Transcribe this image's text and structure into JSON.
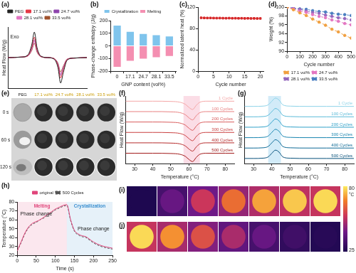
{
  "chart_data": [
    {
      "label": "(a)",
      "type": "line",
      "ylabel": "Heat Flow (W/g)",
      "tick_labels": false,
      "grid": false,
      "legend": "top",
      "xlim": [
        20,
        80
      ],
      "ylim": [
        -6,
        6
      ],
      "x": [
        20,
        30,
        35,
        38,
        40,
        42,
        45,
        50,
        55,
        58,
        60,
        62,
        65,
        70,
        80
      ],
      "series": [
        {
          "name": "PEG",
          "color": "#222222",
          "values": [
            0,
            0.1,
            0.5,
            2.5,
            5,
            2,
            0.3,
            0,
            -0.3,
            -2,
            -5,
            -3,
            -0.5,
            -0.1,
            0
          ]
        },
        {
          "name": "17.1 vol%",
          "color": "#e63946",
          "values": [
            0,
            0.1,
            0.4,
            2,
            4,
            1.6,
            0.2,
            0,
            -0.2,
            -1.6,
            -4,
            -2.4,
            -0.4,
            -0.1,
            0
          ]
        },
        {
          "name": "24.7 vol%",
          "color": "#8e44ad",
          "values": [
            0,
            0.1,
            0.4,
            1.8,
            3.5,
            1.4,
            0.2,
            0,
            -0.2,
            -1.4,
            -3.5,
            -2.1,
            -0.4,
            -0.1,
            0
          ]
        },
        {
          "name": "28.1 vol%",
          "color": "#e377c2",
          "values": [
            0,
            0.1,
            0.3,
            1.6,
            3.2,
            1.3,
            0.2,
            0,
            -0.2,
            -1.3,
            -3.2,
            -1.9,
            -0.3,
            -0.1,
            0
          ]
        },
        {
          "name": "33.5 vol%",
          "color": "#a0522d",
          "values": [
            0,
            0.1,
            0.3,
            1.4,
            2.8,
            1.1,
            0.2,
            0,
            -0.2,
            -1.1,
            -2.8,
            -1.7,
            -0.3,
            -0.1,
            0
          ]
        }
      ],
      "annotations": [
        {
          "text": "Exo",
          "x": 25,
          "y": 4
        }
      ]
    },
    {
      "label": "(b)",
      "type": "bar",
      "xlabel": "GNP content (vol%)",
      "ylabel": "Phase-change enthalpy (J/g)",
      "grid": false,
      "legend": "top",
      "stacked": true,
      "categories": [
        "0",
        "17.1",
        "24.7",
        "28.1",
        "33.5"
      ],
      "ylim": [
        -200,
        200
      ],
      "yticks": [
        -200,
        -100,
        0,
        100,
        200
      ],
      "series": [
        {
          "name": "Crystallization",
          "color": "#7fc4ec",
          "values": [
            160,
            112,
            95,
            85,
            75
          ]
        },
        {
          "name": "Melting",
          "color": "#f48fb1",
          "values": [
            -165,
            -118,
            -100,
            -90,
            -80
          ]
        }
      ]
    },
    {
      "label": "(c)",
      "type": "line",
      "xlabel": "Cycle number",
      "ylabel": "Normalized latent heat (%)",
      "grid": false,
      "color": "#d62728",
      "marker": "square",
      "xlim": [
        0,
        21
      ],
      "xticks": [
        0,
        5,
        10,
        15,
        20
      ],
      "ylim": [
        0,
        120
      ],
      "yticks": [
        0,
        40,
        80,
        120
      ],
      "x": [
        1,
        2,
        3,
        4,
        5,
        6,
        7,
        8,
        9,
        10,
        11,
        12,
        13,
        14,
        15,
        16,
        17,
        18,
        19,
        20
      ],
      "values": [
        100,
        99.8,
        99.6,
        99.7,
        99.5,
        99.4,
        99.5,
        99.3,
        99.2,
        99.4,
        99.1,
        99.2,
        99,
        99.1,
        98.9,
        99,
        98.8,
        98.9,
        98.7,
        98.8
      ]
    },
    {
      "label": "(d)",
      "type": "line",
      "xlabel": "Cycle number",
      "ylabel": "Weight (%)",
      "grid": false,
      "legend": "bottom",
      "xlim": [
        0,
        500
      ],
      "xticks": [
        0,
        100,
        200,
        300,
        400,
        500
      ],
      "ylim": [
        90,
        100
      ],
      "yticks": [
        90,
        92,
        94,
        96,
        98,
        100
      ],
      "x": [
        0,
        50,
        100,
        150,
        200,
        250,
        300,
        350,
        400,
        450,
        500
      ],
      "series": [
        {
          "name": "17.1 vol%",
          "color": "#f0a040",
          "marker": "circle",
          "line_style": "dashed",
          "values": [
            100,
            99.4,
            98.7,
            98.1,
            97.3,
            96.6,
            95.9,
            95.0,
            94.4,
            93.6,
            93.0
          ]
        },
        {
          "name": "24.7 vol%",
          "color": "#e377c2",
          "marker": "circle",
          "line_style": "dashed",
          "values": [
            100,
            99.6,
            99.1,
            98.8,
            98.3,
            97.9,
            97.6,
            97.1,
            96.8,
            96.3,
            96.0
          ]
        },
        {
          "name": "28.1 vol%",
          "color": "#9467bd",
          "marker": "circle",
          "line_style": "dashed",
          "values": [
            100,
            99.7,
            99.5,
            99.1,
            98.8,
            98.6,
            98.2,
            97.9,
            97.6,
            97.4,
            97.1
          ]
        },
        {
          "name": "33.5 vol%",
          "color": "#4a7fc1",
          "marker": "circle",
          "line_style": "dashed",
          "values": [
            100,
            99.8,
            99.6,
            99.5,
            99.2,
            99.0,
            98.9,
            98.6,
            98.4,
            98.3,
            98.1
          ]
        }
      ]
    },
    {
      "label": "(f)",
      "type": "line",
      "xlabel": "Temperature (°C)",
      "ylabel": "Heat Flow (W/g)",
      "grid": false,
      "legend": "right",
      "tick_labels": "x",
      "xlim": [
        25,
        85
      ],
      "xticks": [
        30,
        40,
        50,
        60,
        70,
        80
      ],
      "ylim": [
        -1,
        12
      ],
      "band": {
        "range": [
          57,
          66
        ],
        "color": "#f9cfdc"
      },
      "x": [
        25,
        30,
        40,
        50,
        55,
        58,
        60,
        62,
        64,
        66,
        70,
        80,
        85
      ],
      "series": [
        {
          "name": "1 Cycle",
          "color": "#f4a6a6",
          "values": [
            11,
            11,
            11,
            10.95,
            10.8,
            10.4,
            9.8,
            9.4,
            10.2,
            10.8,
            11,
            11,
            11
          ]
        },
        {
          "name": "100 Cycles",
          "color": "#e88080",
          "values": [
            9,
            9,
            9,
            8.95,
            8.8,
            8.4,
            7.8,
            7.4,
            8.2,
            8.8,
            9,
            9,
            9
          ]
        },
        {
          "name": "200 Cycles",
          "color": "#d95c5c",
          "values": [
            7,
            7,
            7,
            6.95,
            6.8,
            6.4,
            5.8,
            5.4,
            6.2,
            6.8,
            7,
            7,
            7
          ]
        },
        {
          "name": "300 Cycles",
          "color": "#c94040",
          "values": [
            5,
            5,
            5,
            4.95,
            4.8,
            4.4,
            3.8,
            3.4,
            4.2,
            4.8,
            5,
            5,
            5
          ]
        },
        {
          "name": "400 Cycles",
          "color": "#b52a2a",
          "values": [
            3,
            3,
            3,
            2.95,
            2.8,
            2.4,
            1.8,
            1.4,
            2.2,
            2.8,
            3,
            3,
            3
          ]
        },
        {
          "name": "500 Cycles",
          "color": "#a01818",
          "values": [
            1,
            1,
            1,
            0.95,
            0.8,
            0.4,
            -0.2,
            -0.6,
            0.2,
            0.8,
            1,
            1,
            1
          ]
        }
      ]
    },
    {
      "label": "(g)",
      "type": "line",
      "xlabel": "Temperature (°C)",
      "ylabel": "Heat Flow (W/g)",
      "grid": false,
      "legend": "right",
      "tick_labels": "x",
      "xlim": [
        25,
        85
      ],
      "xticks": [
        30,
        40,
        50,
        60,
        70,
        80
      ],
      "ylim": [
        -1,
        12
      ],
      "band": {
        "range": [
          38,
          45
        ],
        "color": "#bfe3f5"
      },
      "x": [
        25,
        30,
        35,
        38,
        40,
        42,
        44,
        46,
        50,
        60,
        70,
        80,
        85
      ],
      "series": [
        {
          "name": "1 Cycle",
          "color": "#8dd3e8",
          "values": [
            10,
            10,
            10.05,
            10.3,
            11,
            11.6,
            11.2,
            10.3,
            10.05,
            10,
            10,
            10,
            10
          ]
        },
        {
          "name": "100 Cycles",
          "color": "#5bbad8",
          "values": [
            8,
            8,
            8.05,
            8.3,
            9,
            9.6,
            9.2,
            8.3,
            8.05,
            8,
            8,
            8,
            8
          ]
        },
        {
          "name": "200 Cycles",
          "color": "#2ea0c8",
          "values": [
            6,
            6,
            6.05,
            6.3,
            7,
            7.6,
            7.2,
            6.3,
            6.05,
            6,
            6,
            6,
            6
          ]
        },
        {
          "name": "300 Cycles",
          "color": "#1a86b0",
          "values": [
            4,
            4,
            4.05,
            4.3,
            5,
            5.6,
            5.2,
            4.3,
            4.05,
            4,
            4,
            4,
            4
          ]
        },
        {
          "name": "400 Cycles",
          "color": "#0d6a96",
          "values": [
            2,
            2,
            2.05,
            2.3,
            3,
            3.6,
            3.2,
            2.3,
            2.05,
            2,
            2,
            2,
            2
          ]
        },
        {
          "name": "500 Cycles",
          "color": "#06507a",
          "values": [
            0,
            0,
            0.05,
            0.3,
            1,
            1.6,
            1.2,
            0.3,
            0.05,
            0,
            0,
            0,
            0
          ]
        }
      ]
    },
    {
      "label": "(h)",
      "type": "line",
      "xlabel": "Time (s)",
      "ylabel": "Temperature (°C)",
      "grid": false,
      "legend": "top",
      "xlim": [
        0,
        250
      ],
      "xticks": [
        0,
        50,
        100,
        150,
        200,
        250
      ],
      "ylim": [
        20,
        80
      ],
      "yticks": [
        20,
        30,
        40,
        50,
        60,
        70,
        80
      ],
      "regions": [
        {
          "label": "Melting",
          "range": [
            0,
            130
          ],
          "color": "#e0457b"
        },
        {
          "label": "Crystallization",
          "range": [
            130,
            250
          ],
          "color": "#3a8fd0"
        }
      ],
      "annotations": [
        {
          "text": "Phase change",
          "x": 50,
          "y": 66
        },
        {
          "text": "Phase change",
          "x": 200,
          "y": 50
        }
      ],
      "x": [
        0,
        10,
        20,
        30,
        40,
        50,
        60,
        70,
        80,
        90,
        100,
        110,
        120,
        130,
        140,
        150,
        160,
        170,
        180,
        190,
        200,
        220,
        250
      ],
      "series": [
        {
          "name": "original",
          "color": "#e0457b",
          "values": [
            25,
            35,
            45,
            52,
            56,
            58,
            60,
            63,
            66,
            69,
            72,
            74,
            76,
            77,
            60,
            48,
            44,
            42,
            41,
            38,
            35,
            31,
            28
          ]
        },
        {
          "name": "500 Cycles",
          "color": "#555555",
          "line_style": "dashed",
          "values": [
            25,
            34,
            44,
            51,
            55,
            57,
            60,
            62,
            65,
            68,
            71,
            73,
            75,
            76,
            59,
            47,
            43,
            41,
            40,
            37,
            34,
            30,
            27
          ]
        }
      ]
    }
  ],
  "photographs": {
    "label": "(e)",
    "samples": [
      "PEG",
      "17.1 vol%",
      "24.7 vol%",
      "28.1 vol%",
      "33.5 vol%"
    ],
    "times": [
      "0 s",
      "60 s",
      "120 s"
    ]
  },
  "thermal_images": {
    "rows": [
      {
        "label": "(i)",
        "temperatures": [
          25,
          40,
          55,
          65,
          72,
          76,
          78
        ]
      },
      {
        "label": "(j)",
        "temperatures": [
          78,
          70,
          60,
          50,
          40,
          32,
          27
        ]
      }
    ],
    "colorbar": {
      "range": [
        25,
        80
      ],
      "ticks": [
        25,
        80
      ],
      "unit": "°C"
    }
  }
}
